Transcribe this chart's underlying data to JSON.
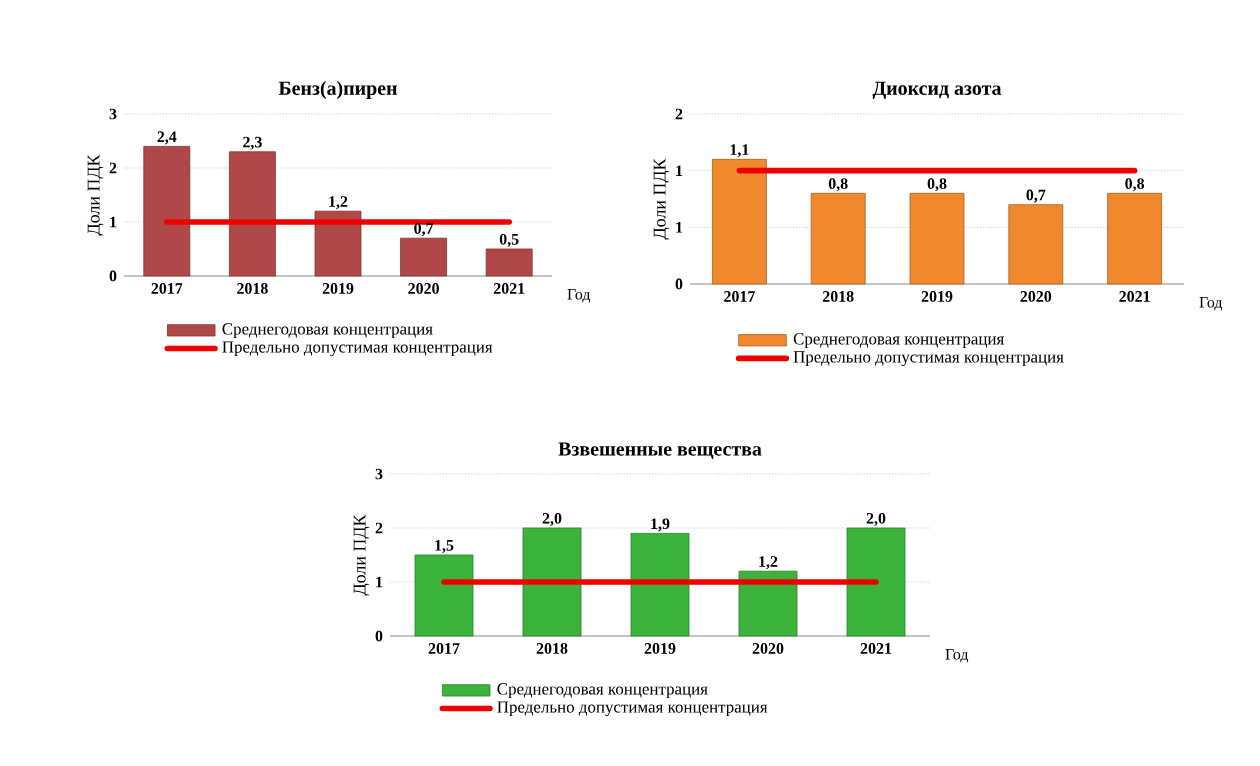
{
  "chart_data": [
    {
      "type": "bar",
      "title": "Бенз(а)пирен",
      "xlabel": "Год",
      "ylabel": "Доли ПДК",
      "categories": [
        "2017",
        "2018",
        "2019",
        "2020",
        "2021"
      ],
      "ylim": [
        0,
        3
      ],
      "yticks": [
        0,
        1,
        2,
        3
      ],
      "grid": "y",
      "legend": "bottom",
      "series": [
        {
          "name": "Среднегодовая концентрация",
          "color": "#b04848",
          "values": [
            2.4,
            2.3,
            1.2,
            0.7,
            0.5
          ],
          "value_labels": [
            "2,4",
            "2,3",
            "1,2",
            "0,7",
            "0,5"
          ]
        },
        {
          "type": "line",
          "name": "Предельно допустимая концентрация",
          "color": "#ee0000",
          "values": [
            1,
            1,
            1,
            1,
            1
          ]
        }
      ]
    },
    {
      "type": "bar",
      "title": "Диоксид азота",
      "xlabel": "Год",
      "ylabel": "Доли ПДК",
      "categories": [
        "2017",
        "2018",
        "2019",
        "2020",
        "2021"
      ],
      "ylim": [
        0,
        1.5
      ],
      "yticks": [
        0,
        {
          "value": 0.5,
          "label": "1"
        },
        1,
        {
          "value": 1.5,
          "label": "2"
        }
      ],
      "grid": "y",
      "legend": "bottom",
      "series": [
        {
          "name": "Среднегодовая концентрация",
          "color": "#f0882c",
          "values": [
            1.1,
            0.8,
            0.8,
            0.7,
            0.8
          ],
          "value_labels": [
            "1,1",
            "0,8",
            "0,8",
            "0,7",
            "0,8"
          ]
        },
        {
          "type": "line",
          "name": "Предельно допустимая концентрация",
          "color": "#ee0000",
          "values": [
            1,
            1,
            1,
            1,
            1
          ]
        }
      ]
    },
    {
      "type": "bar",
      "title": "Взвешенные вещества",
      "xlabel": "Год",
      "ylabel": "Доли ПДК",
      "categories": [
        "2017",
        "2018",
        "2019",
        "2020",
        "2021"
      ],
      "ylim": [
        0,
        3
      ],
      "yticks": [
        0,
        1,
        2,
        3
      ],
      "grid": "y",
      "legend": "bottom",
      "series": [
        {
          "name": "Среднегодовая концентрация",
          "color": "#3cb43c",
          "values": [
            1.5,
            2.0,
            1.9,
            1.2,
            2.0
          ],
          "value_labels": [
            "1,5",
            "2,0",
            "1,9",
            "1,2",
            "2,0"
          ]
        },
        {
          "type": "line",
          "name": "Предельно допустимая концентрация",
          "color": "#ee0000",
          "values": [
            1,
            1,
            1,
            1,
            1
          ]
        }
      ]
    }
  ]
}
